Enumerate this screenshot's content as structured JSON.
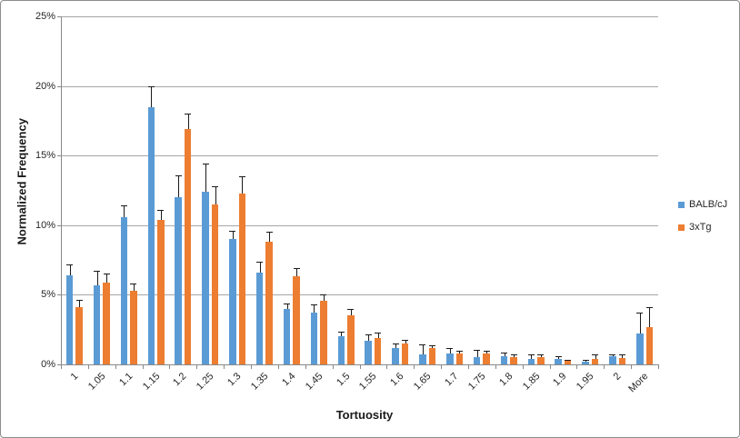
{
  "chart_data": {
    "type": "bar",
    "title": "",
    "xlabel": "Tortuosity",
    "ylabel": "Normalized Frequency",
    "categories": [
      "1",
      "1.05",
      "1.1",
      "1.15",
      "1.2",
      "1.25",
      "1.3",
      "1.35",
      "1.4",
      "1.45",
      "1.5",
      "1.55",
      "1.6",
      "1.65",
      "1.7",
      "1.75",
      "1.8",
      "1.85",
      "1.9",
      "1.95",
      "2",
      "More"
    ],
    "series": [
      {
        "name": "BALB/cJ",
        "color": "#5B9BD5",
        "values": [
          6.4,
          5.7,
          10.6,
          18.5,
          12.0,
          12.4,
          9.0,
          6.6,
          4.0,
          3.7,
          2.0,
          1.7,
          1.2,
          0.7,
          0.8,
          0.5,
          0.6,
          0.4,
          0.4,
          0.2,
          0.6,
          2.2
        ],
        "errors_up": [
          0.8,
          1.0,
          0.85,
          1.5,
          1.6,
          2.0,
          0.6,
          0.75,
          0.4,
          0.6,
          0.35,
          0.45,
          0.3,
          0.75,
          0.4,
          0.55,
          0.25,
          0.3,
          0.2,
          0.1,
          0.1,
          1.5
        ]
      },
      {
        "name": "3xTg",
        "color": "#ED7D31",
        "values": [
          4.1,
          5.85,
          5.3,
          10.4,
          16.9,
          11.5,
          12.3,
          8.8,
          6.3,
          4.6,
          3.5,
          1.9,
          1.5,
          1.2,
          0.8,
          0.8,
          0.55,
          0.5,
          0.25,
          0.4,
          0.45,
          2.7
        ],
        "errors_up": [
          0.55,
          0.65,
          0.5,
          0.7,
          1.1,
          1.3,
          1.2,
          0.7,
          0.65,
          0.4,
          0.45,
          0.4,
          0.25,
          0.2,
          0.2,
          0.15,
          0.15,
          0.2,
          0.1,
          0.3,
          0.25,
          1.4
        ]
      }
    ],
    "ylim": [
      0,
      25
    ],
    "y_tick_step": 5,
    "y_ticks": [
      "0%",
      "5%",
      "10%",
      "15%",
      "20%",
      "25%"
    ],
    "grid": true,
    "legend_position": "right",
    "error_bars": "upper whiskers with caps, black"
  }
}
